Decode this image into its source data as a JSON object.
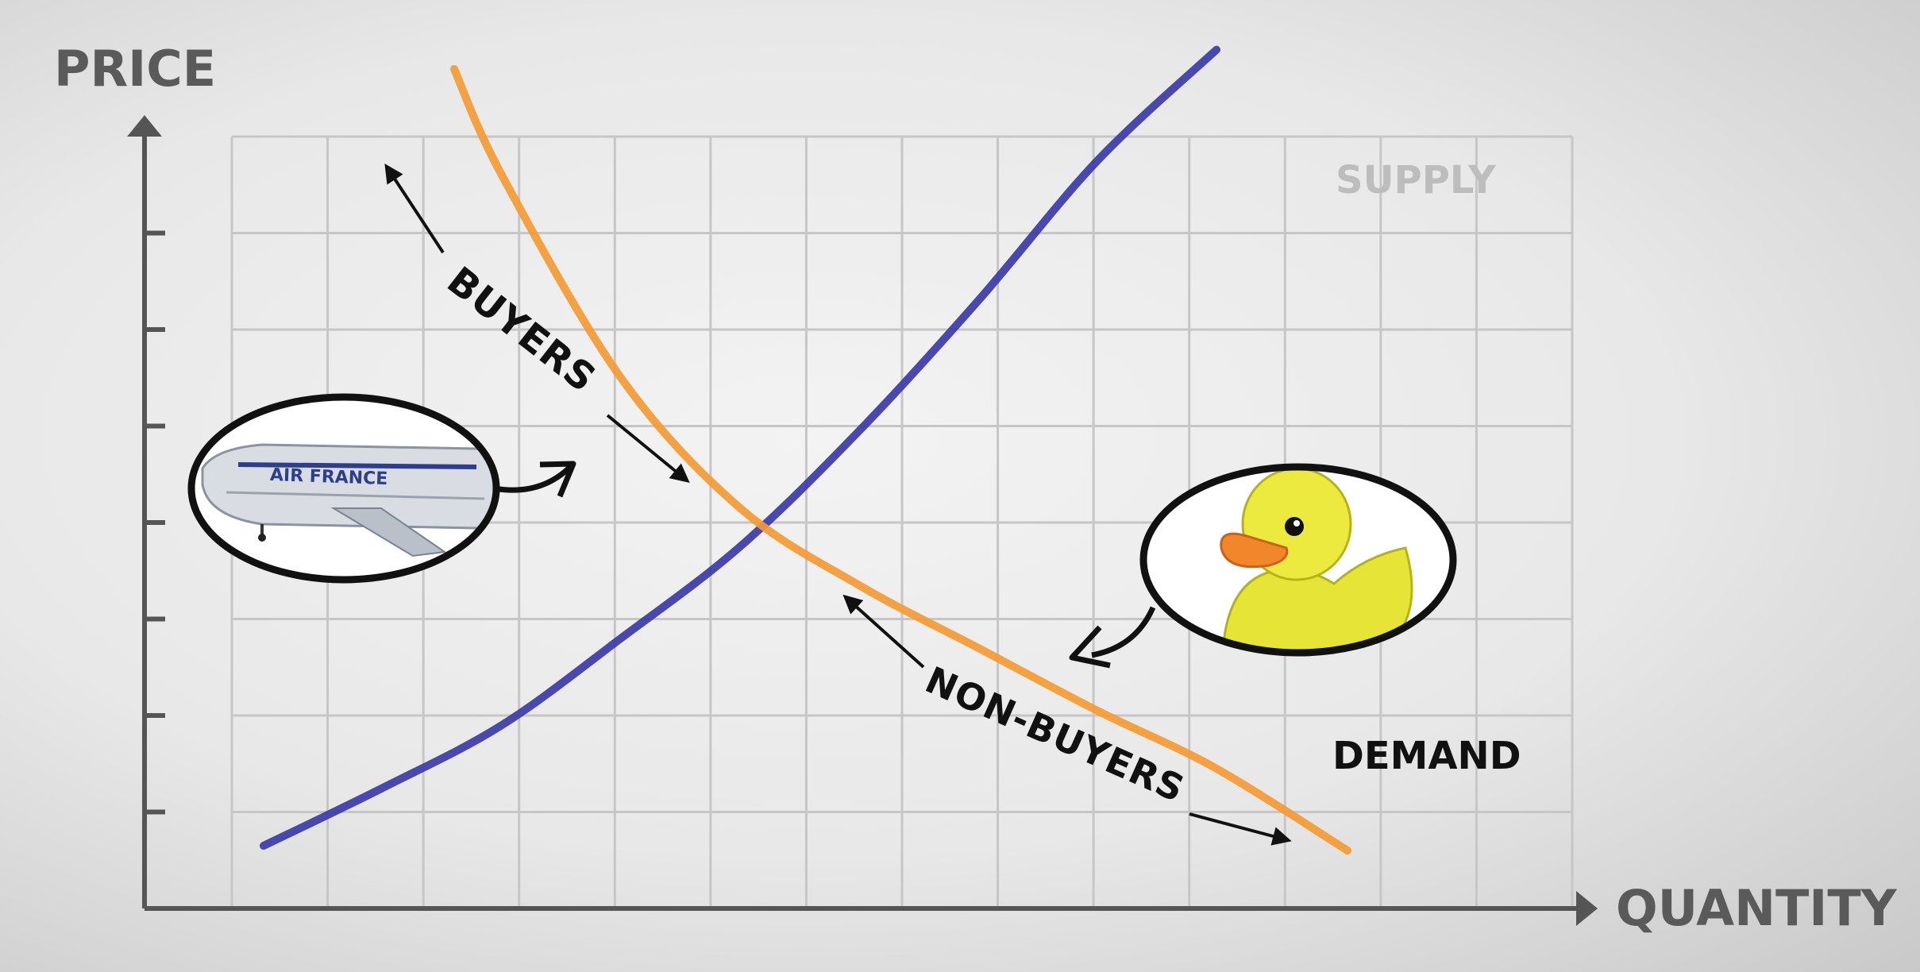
{
  "chart_data": {
    "type": "line",
    "title": "",
    "xlabel": "QUANTITY",
    "ylabel": "PRICE",
    "grid": true,
    "xlim": [
      0,
      10
    ],
    "ylim": [
      0,
      8
    ],
    "series": [
      {
        "name": "SUPPLY",
        "color": "#3b39a8",
        "x": [
          1.0,
          2.0,
          3.0,
          4.0,
          5.0,
          6.0,
          7.0,
          8.0,
          9.0
        ],
        "y": [
          0.65,
          1.25,
          1.9,
          2.8,
          3.75,
          4.95,
          6.3,
          7.75,
          8.9
        ]
      },
      {
        "name": "DEMAND",
        "color": "#f39a33",
        "x": [
          2.6,
          3.0,
          4.0,
          5.0,
          6.0,
          7.0,
          8.0,
          9.0,
          10.1
        ],
        "y": [
          8.7,
          7.6,
          5.5,
          4.15,
          3.35,
          2.7,
          2.05,
          1.45,
          0.6
        ]
      }
    ],
    "annotations": [
      {
        "text": "BUYERS",
        "arrow": "both"
      },
      {
        "text": "NON-BUYERS",
        "arrow": "both"
      }
    ],
    "images": [
      {
        "icon": "airplane-icon",
        "label": "AIR FRANCE"
      },
      {
        "icon": "rubber-duck-icon"
      }
    ]
  }
}
